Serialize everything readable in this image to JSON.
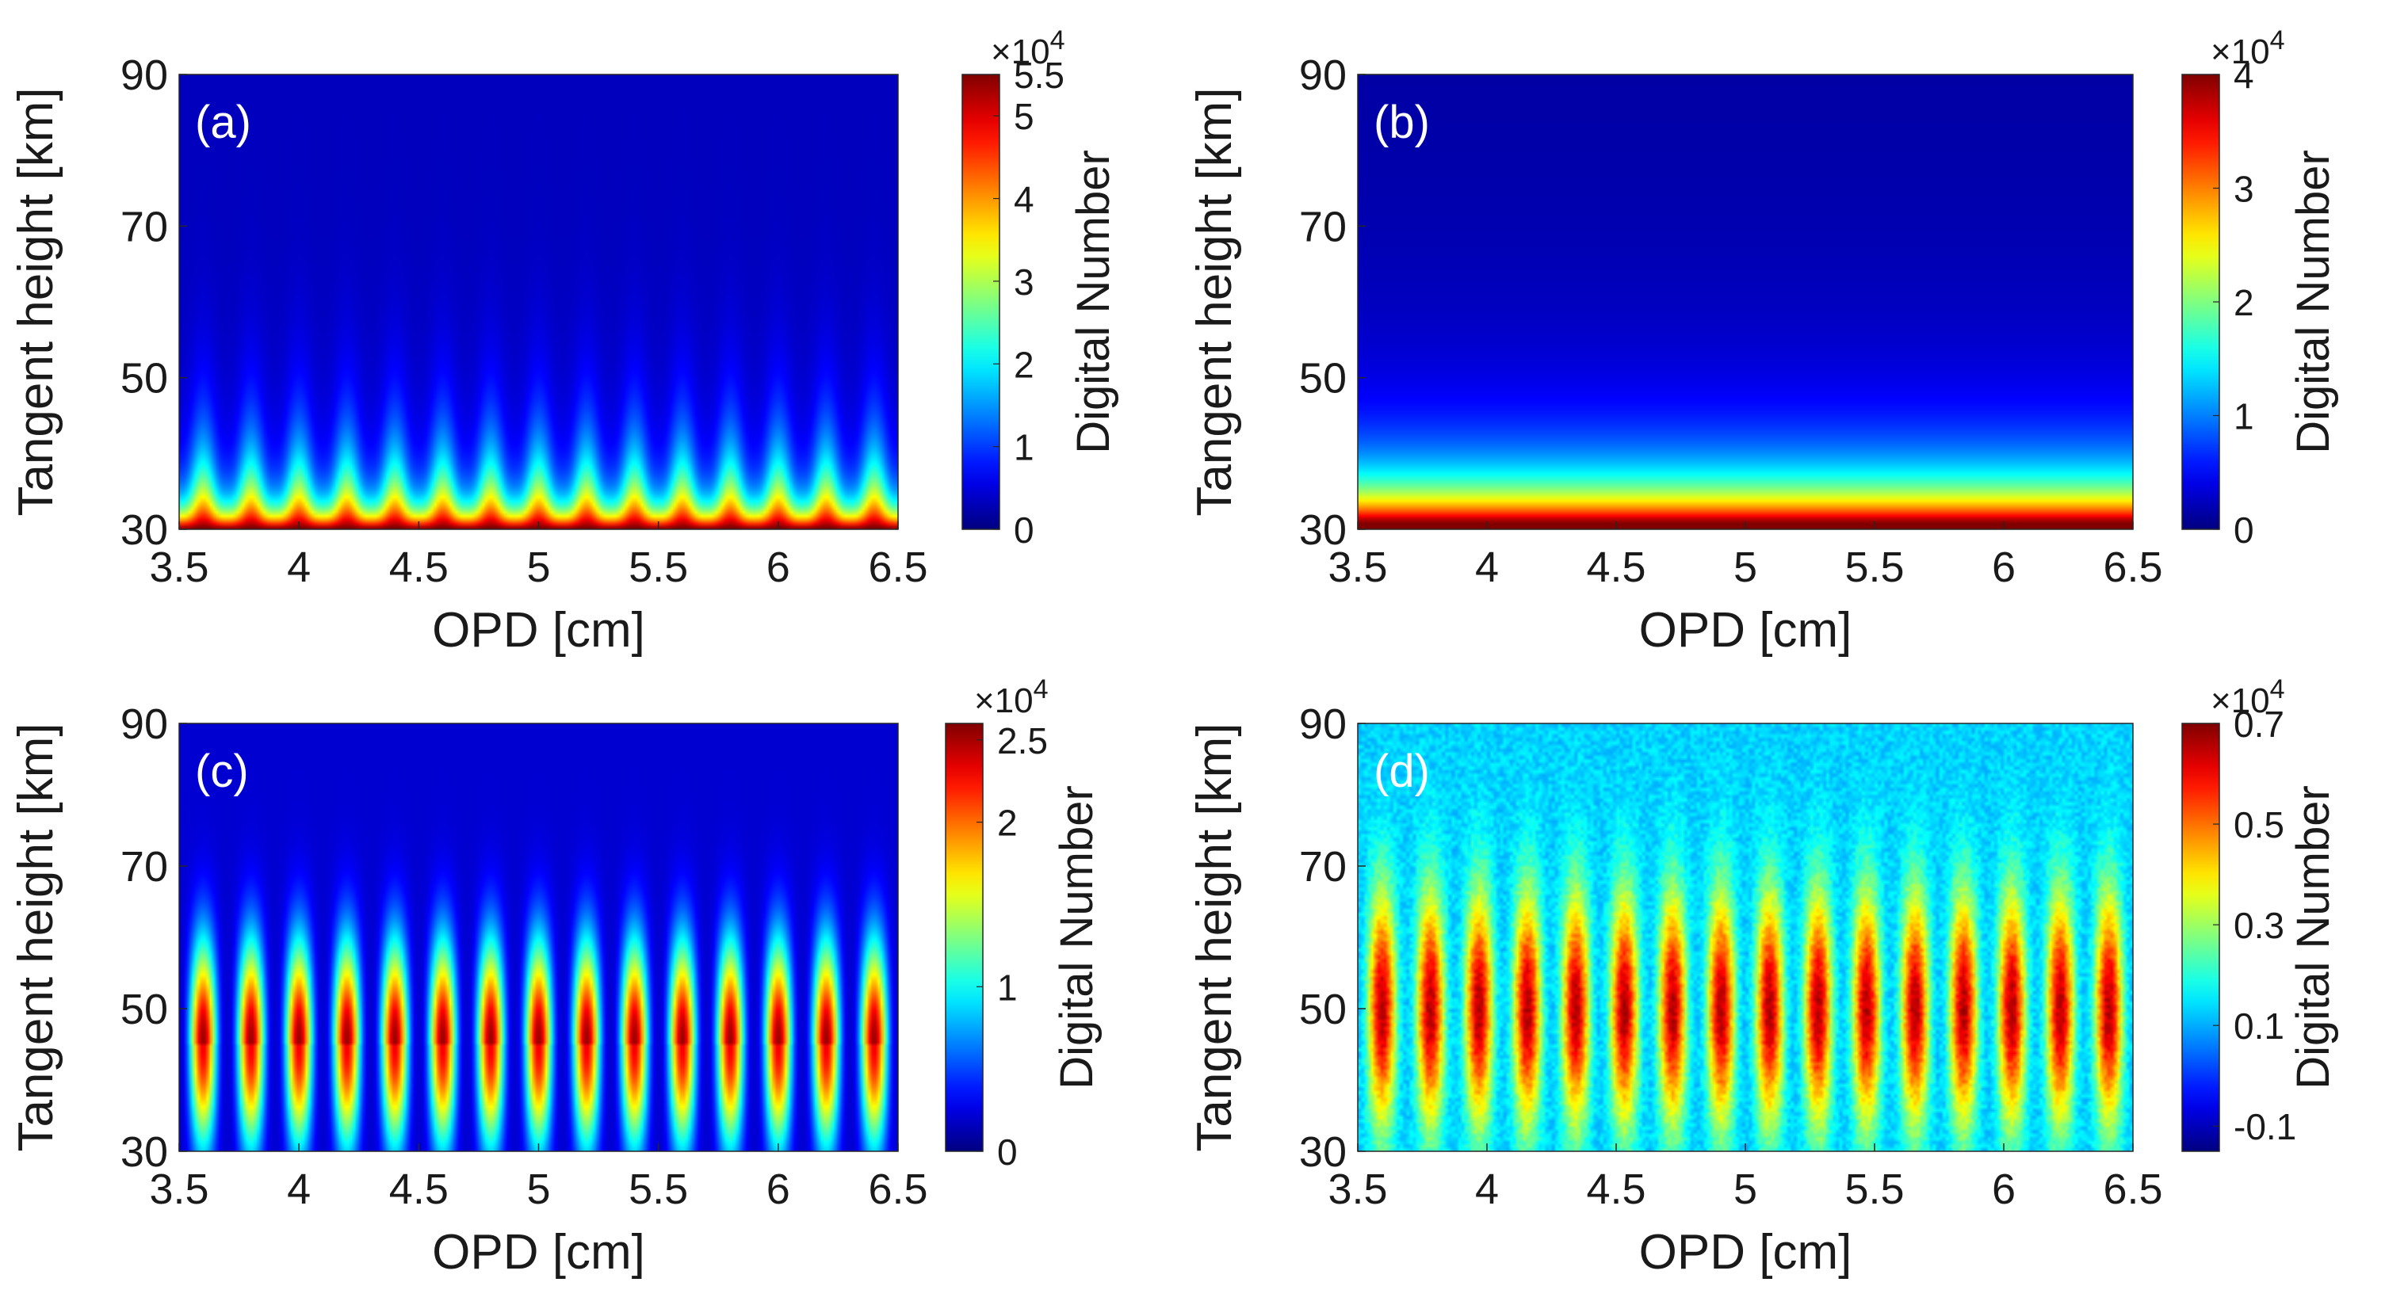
{
  "figure": {
    "colormap": "jet",
    "background": "#ffffff"
  },
  "chart_data": [
    {
      "type": "heatmap",
      "panel_label": "(a)",
      "description_pattern": "fringes_bottom_strong",
      "xlabel": "OPD [cm]",
      "ylabel": "Tangent height [km]",
      "xlim": [
        3.5,
        6.5
      ],
      "ylim": [
        30,
        90
      ],
      "xticks": [
        "3.5",
        "4",
        "4.5",
        "5",
        "5.5",
        "6",
        "6.5"
      ],
      "yticks": [
        "30",
        "50",
        "70",
        "90"
      ],
      "colorbar": {
        "label": "Digital Number",
        "exponent_label": "×10",
        "exponent": "4",
        "range": [
          0,
          5.5
        ],
        "ticks": [
          0,
          1,
          2,
          3,
          4,
          5,
          5.5
        ],
        "tick_labels": [
          "0",
          "1",
          "2",
          "3",
          "4",
          "5",
          "5.5"
        ]
      },
      "fringe_count": 15
    },
    {
      "type": "heatmap",
      "panel_label": "(b)",
      "description_pattern": "smooth_bottom_gradient",
      "xlabel": "OPD [cm]",
      "ylabel": "Tangent height [km]",
      "xlim": [
        3.5,
        6.5
      ],
      "ylim": [
        30,
        90
      ],
      "xticks": [
        "3.5",
        "4",
        "4.5",
        "5",
        "5.5",
        "6",
        "6.5"
      ],
      "yticks": [
        "30",
        "50",
        "70",
        "90"
      ],
      "colorbar": {
        "label": "Digital Number",
        "exponent_label": "×10",
        "exponent": "4",
        "range": [
          0,
          4
        ],
        "ticks": [
          0,
          1,
          2,
          3,
          4
        ],
        "tick_labels": [
          "0",
          "1",
          "2",
          "3",
          "4"
        ]
      },
      "fringe_count": 0
    },
    {
      "type": "heatmap",
      "panel_label": "(c)",
      "description_pattern": "fringes_mid_peak",
      "xlabel": "OPD [cm]",
      "ylabel": "Tangent height [km]",
      "xlim": [
        3.5,
        6.5
      ],
      "ylim": [
        30,
        90
      ],
      "xticks": [
        "3.5",
        "4",
        "4.5",
        "5",
        "5.5",
        "6",
        "6.5"
      ],
      "yticks": [
        "30",
        "50",
        "70",
        "90"
      ],
      "colorbar": {
        "label": "Digital Number",
        "exponent_label": "×10",
        "exponent": "4",
        "range": [
          0,
          2.6
        ],
        "ticks": [
          0,
          1,
          2,
          2.5
        ],
        "tick_labels": [
          "0",
          "1",
          "2",
          "2.5"
        ]
      },
      "fringe_count": 15
    },
    {
      "type": "heatmap",
      "panel_label": "(d)",
      "description_pattern": "fringes_mid_peak_noisy",
      "xlabel": "OPD [cm]",
      "ylabel": "Tangent height [km]",
      "xlim": [
        3.5,
        6.5
      ],
      "ylim": [
        30,
        90
      ],
      "xticks": [
        "3.5",
        "4",
        "4.5",
        "5",
        "5.5",
        "6",
        "6.5"
      ],
      "yticks": [
        "30",
        "50",
        "70",
        "90"
      ],
      "colorbar": {
        "label": "Digital Number",
        "exponent_label": "×10",
        "exponent": "4",
        "range": [
          -0.15,
          0.7
        ],
        "ticks": [
          -0.1,
          0.1,
          0.3,
          0.5,
          0.7
        ],
        "tick_labels": [
          "-0.1",
          "0.1",
          "0.3",
          "0.5",
          "0.7"
        ]
      },
      "fringe_count": 16
    }
  ]
}
